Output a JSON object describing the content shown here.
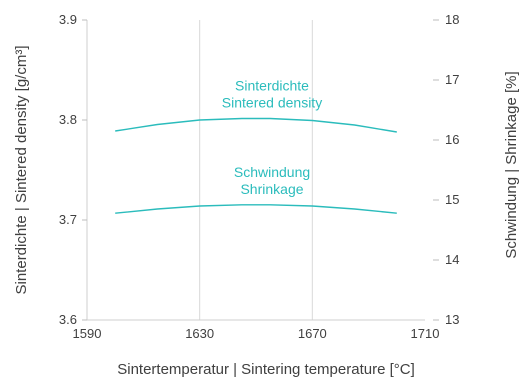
{
  "chart_data": {
    "type": "line",
    "xlabel": "Sintertemperatur  |  Sintering temperature [°C]",
    "ylabel": "Sinterdichte  |  Sintered density [g/cm³]",
    "ylabel_right": "Schwindung  |  Shrinkage [%]",
    "xlim": [
      1590,
      1710
    ],
    "ylim": [
      3.6,
      3.9
    ],
    "ylim_right": [
      13,
      18
    ],
    "x_ticks": [
      "1590",
      "1630",
      "1670",
      "1710"
    ],
    "y_ticks": [
      "3.6",
      "3.7",
      "3.8",
      "3.9"
    ],
    "y_right_ticks": [
      "13",
      "14",
      "15",
      "16",
      "17",
      "18"
    ],
    "grid": "vertical",
    "line_color": "#2bbcbc",
    "series": [
      {
        "name_lines": [
          "Sinterdichte",
          "Sintered density"
        ],
        "axis": "left",
        "x": [
          1600,
          1615,
          1630,
          1645,
          1655,
          1670,
          1685,
          1700
        ],
        "y": [
          3.789,
          3.7955,
          3.8,
          3.8015,
          3.8015,
          3.7995,
          3.795,
          3.788
        ]
      },
      {
        "name_lines": [
          "Schwindung",
          "Shrinkage"
        ],
        "axis": "right",
        "x": [
          1600,
          1615,
          1630,
          1645,
          1655,
          1670,
          1685,
          1700
        ],
        "y": [
          14.78,
          14.85,
          14.9,
          14.92,
          14.92,
          14.9,
          14.85,
          14.78
        ]
      }
    ]
  }
}
